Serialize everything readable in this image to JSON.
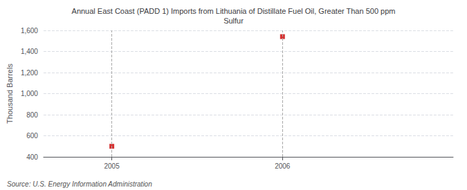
{
  "chart_data": {
    "type": "scatter",
    "title": "Annual East Coast (PADD 1) Imports from Lithuania of Distillate Fuel Oil, Greater Than 500 ppm\nSulfur",
    "ylabel": "Thousand Barrels",
    "annotations": [
      "Source: U.S. Energy Information Administration"
    ],
    "x": [
      2005,
      2006
    ],
    "values": [
      500,
      1541
    ],
    "color": "#cc0000",
    "marker": "square",
    "xlim": [
      2004.6,
      2007.0
    ],
    "xticks": [
      2005,
      2006
    ],
    "ylim": [
      400,
      1600
    ],
    "yticks": [
      400,
      600,
      800,
      {
        "value": 1000,
        "label": "1,000"
      },
      {
        "value": 1200,
        "label": "1,200"
      },
      {
        "value": 1400,
        "label": "1,400"
      },
      {
        "value": 1600,
        "label": "1,600"
      }
    ],
    "grid": true
  }
}
